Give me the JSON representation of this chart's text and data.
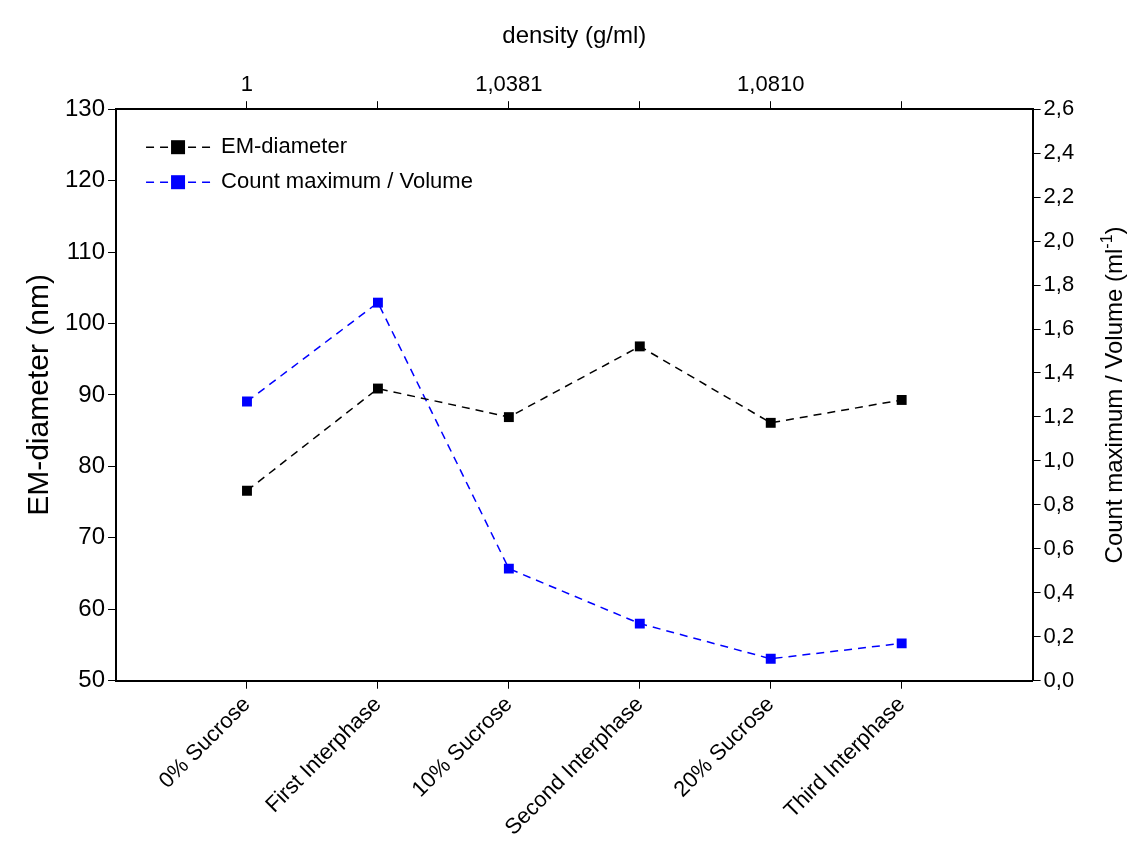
{
  "chart_data": {
    "type": "line",
    "xlabel": null,
    "ylabel": "EM-diameter (nm)",
    "y2label": "Count maximum / Volume (ml$^{-1}$)",
    "x2label": "density (g/ml)",
    "categories": [
      "0% Sucrose",
      "First Interphase",
      "10% Sucrose",
      "Second Interphase",
      "20% Sucrose",
      "Third Interphase"
    ],
    "series": [
      {
        "name": "EM-diameter",
        "color": "#000000",
        "values": [
          76.6,
          90.9,
          86.9,
          96.8,
          86.1,
          89.3
        ]
      },
      {
        "name": "Count maximum / Volume",
        "color": "#0000ff",
        "axis": "y2",
        "values": [
          1.27,
          1.72,
          0.51,
          0.26,
          0.1,
          0.17
        ]
      }
    ],
    "ylim": [
      50,
      130
    ],
    "yticks": [
      50,
      60,
      70,
      80,
      90,
      100,
      110,
      120,
      130
    ],
    "y2lim": [
      0,
      2.6
    ],
    "y2ticks": [
      {
        "value": 0,
        "label": "0,0"
      },
      {
        "value": 0.2,
        "label": "0,2"
      },
      {
        "value": 0.4,
        "label": "0,4"
      },
      {
        "value": 0.6,
        "label": "0,6"
      },
      {
        "value": 0.8,
        "label": "0,8"
      },
      {
        "value": 1,
        "label": "1,0"
      },
      {
        "value": 1.2,
        "label": "1,2"
      },
      {
        "value": 1.4,
        "label": "1,4"
      },
      {
        "value": 1.6,
        "label": "1,6"
      },
      {
        "value": 1.8,
        "label": "1,8"
      },
      {
        "value": 2,
        "label": "2,0"
      },
      {
        "value": 2.2,
        "label": "2,2"
      },
      {
        "value": 2.4,
        "label": "2,4"
      },
      {
        "value": 2.6,
        "label": "2,6"
      }
    ],
    "annotations": [
      {
        "text": "1",
        "x": "0% Sucrose"
      },
      {
        "text": "1,0381",
        "x": "10% Sucrose"
      },
      {
        "text": "1,0810",
        "x": "20% Sucrose"
      }
    ],
    "grid": false,
    "legend": "top left",
    "marker": "square",
    "line_style": "dashed"
  }
}
